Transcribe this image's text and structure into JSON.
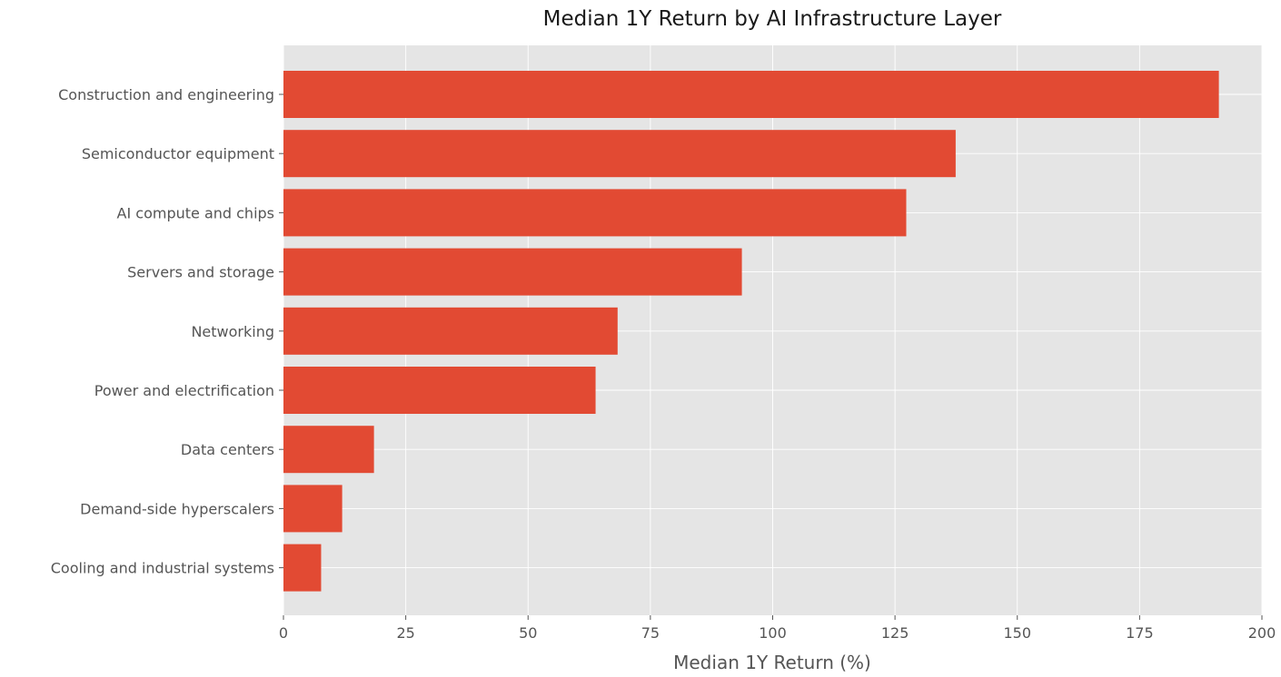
{
  "chart_data": {
    "type": "bar",
    "orientation": "horizontal",
    "title": "Median 1Y Return by AI Infrastructure Layer",
    "xlabel": "Median 1Y Return (%)",
    "ylabel": "",
    "xlim": [
      0,
      200
    ],
    "xticks": [
      0,
      25,
      50,
      75,
      100,
      125,
      150,
      175,
      200
    ],
    "grid": true,
    "legend": "none",
    "bar_color": "#E24A33",
    "plot_background": "#E5E5E5",
    "grid_color": "#FFFFFF",
    "categories": [
      "Construction and engineering",
      "Semiconductor equipment",
      "AI compute and chips",
      "Servers and storage",
      "Networking",
      "Power and electrification",
      "Data centers",
      "Demand-side hyperscalers",
      "Cooling and industrial systems"
    ],
    "values": [
      191.2,
      137.4,
      127.3,
      93.7,
      68.3,
      63.8,
      18.5,
      12.0,
      7.7
    ]
  }
}
